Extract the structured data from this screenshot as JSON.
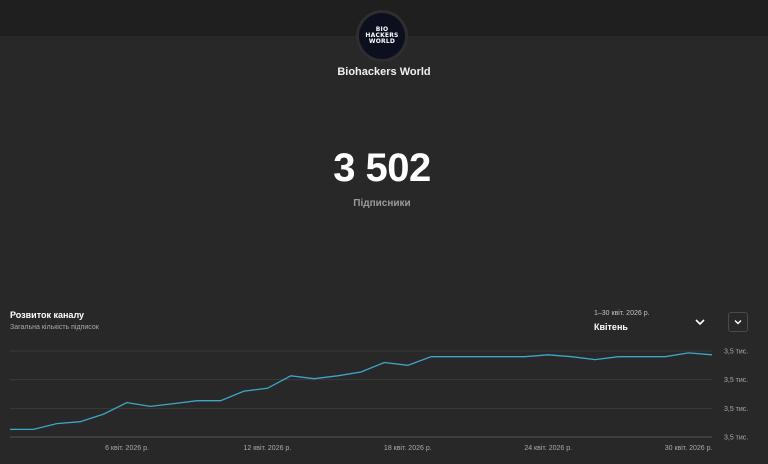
{
  "channel": {
    "name": "Biohackers World",
    "avatar_text": [
      "BIO",
      "HACKERS",
      "WORLD"
    ]
  },
  "stats": {
    "subscriber_count": "3 502",
    "subscriber_label": "Підписники"
  },
  "section": {
    "title": "Розвиток каналу",
    "subtitle": "Загальна кількість підписок"
  },
  "period": {
    "range": "1–30 квіт. 2026 р.",
    "name": "Квітень"
  },
  "icons": {
    "period_dropdown": "chevron-down-icon",
    "expand": "chevron-down-icon"
  },
  "colors": {
    "background": "#282828",
    "line": "#3ea6c8",
    "grid": "#3a3a3a"
  },
  "chart_data": {
    "type": "line",
    "title": "Розвиток каналу",
    "ylabel": "Загальна кількість підписок",
    "x_ticks": [
      "6 квіт. 2026 р.",
      "12 квіт. 2026 р.",
      "18 квіт. 2026 р.",
      "24 квіт. 2026 р.",
      "30 квіт. 2026 р."
    ],
    "x_tick_days": [
      6,
      12,
      18,
      24,
      30
    ],
    "y_ticks": [
      "3,5 тис.",
      "3,5 тис.",
      "3,5 тис.",
      "3,5 тис."
    ],
    "y_tick_values": [
      3460,
      3475,
      3490,
      3505
    ],
    "ylim": [
      3460,
      3505
    ],
    "xlim": [
      1,
      31
    ],
    "grid": true,
    "series": [
      {
        "x": [
          1,
          2,
          3,
          4,
          5,
          6,
          7,
          8,
          9,
          10,
          11,
          12,
          13,
          14,
          15,
          16,
          17,
          18,
          19,
          20,
          21,
          22,
          23,
          24,
          25,
          26,
          27,
          28,
          29,
          30,
          31
        ],
        "values": [
          3464,
          3464,
          3467,
          3468,
          3472,
          3478,
          3476,
          3477.5,
          3479,
          3479,
          3484,
          3485.5,
          3492,
          3490.5,
          3492,
          3494,
          3499,
          3497.5,
          3502,
          3502,
          3502,
          3502,
          3502,
          3503,
          3502,
          3500.5,
          3502,
          3502,
          3502,
          3504,
          3503
        ]
      }
    ]
  }
}
